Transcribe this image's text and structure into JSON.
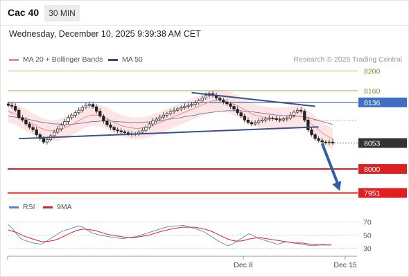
{
  "header": {
    "title": "Cac 40",
    "timeframe": "30 MIN",
    "datetime": "Wednesday, December 10, 2025 9:39:38 AM CET"
  },
  "legend": {
    "ma20_label": "MA 20 + Bollinger Bands",
    "ma50_label": "MA 50",
    "credit": "Research © 2025 Trading Central",
    "rsi_label": "RSI",
    "ma9_label": "9MA"
  },
  "colors": {
    "ma20": "#f28b82",
    "ma50": "#2c4a8a",
    "bollinger_fill": "#fde2e2",
    "green_level": "#7cb342",
    "blue_level": "#3f6fc4",
    "red_level": "#e02020",
    "current_price": "#333333",
    "rsi": "#5c7fd6",
    "rsi_ma": "#e02020",
    "trendline": "#3a4f8f",
    "arrow": "#2f5fa6"
  },
  "chart_data": [
    {
      "type": "candlestick",
      "title": "Cac 40",
      "x_ticks": [
        "Dec 8",
        "Dec 15"
      ],
      "ylim": [
        7942,
        8208
      ],
      "levels": [
        {
          "value": 8200,
          "label": "8200",
          "kind": "resistance",
          "color": "#7cb342"
        },
        {
          "value": 8160,
          "label": "8160",
          "kind": "resistance",
          "color": "#7cb342"
        },
        {
          "value": 8136,
          "label": "8136",
          "kind": "pivot",
          "color": "#3f6fc4"
        },
        {
          "value": 8053,
          "label": "8053",
          "kind": "current",
          "color": "#333333"
        },
        {
          "value": 8000,
          "label": "8000",
          "kind": "support",
          "color": "#e02020"
        },
        {
          "value": 7951,
          "label": "7951",
          "kind": "support",
          "color": "#e02020"
        }
      ],
      "closes": [
        8130,
        8128,
        8120,
        8105,
        8100,
        8092,
        8085,
        8080,
        8070,
        8062,
        8055,
        8060,
        8068,
        8075,
        8082,
        8090,
        8097,
        8105,
        8110,
        8115,
        8120,
        8126,
        8130,
        8132,
        8127,
        8118,
        8108,
        8098,
        8090,
        8085,
        8080,
        8078,
        8076,
        8074,
        8072,
        8071,
        8072,
        8075,
        8079,
        8085,
        8092,
        8098,
        8102,
        8106,
        8110,
        8113,
        8117,
        8120,
        8123,
        8125,
        8128,
        8130,
        8132,
        8135,
        8140,
        8145,
        8150,
        8154,
        8150,
        8145,
        8141,
        8137,
        8133,
        8128,
        8122,
        8115,
        8108,
        8100,
        8095,
        8092,
        8095,
        8098,
        8100,
        8102,
        8104,
        8103,
        8101,
        8100,
        8102,
        8104,
        8110,
        8116,
        8120,
        8118,
        8100,
        8080,
        8070,
        8062,
        8058,
        8055,
        8054,
        8055,
        8053
      ],
      "ma20": [
        8118,
        8115,
        8112,
        8108,
        8104,
        8100,
        8096,
        8092,
        8088,
        8084,
        8081,
        8079,
        8078,
        8078,
        8079,
        8081,
        8084,
        8087,
        8091,
        8095,
        8099,
        8103,
        8106,
        8109,
        8110,
        8110,
        8109,
        8106,
        8103,
        8099,
        8095,
        8092,
        8089,
        8087,
        8085,
        8084,
        8083,
        8083,
        8084,
        8085,
        8087,
        8089,
        8092,
        8095,
        8098,
        8101,
        8104,
        8107,
        8110,
        8113,
        8116,
        8119,
        8122,
        8125,
        8128,
        8131,
        8134,
        8137,
        8139,
        8140,
        8140,
        8139,
        8137,
        8135,
        8132,
        8129,
        8125,
        8121,
        8117,
        8113,
        8110,
        8108,
        8106,
        8105,
        8104,
        8103,
        8103,
        8103,
        8103,
        8104,
        8105,
        8107,
        8108,
        8108,
        8104,
        8098,
        8092,
        8086,
        8080,
        8074,
        8069,
        8065,
        8061
      ],
      "ma50": [
        8108,
        8107,
        8106,
        8105,
        8104,
        8102,
        8101,
        8099,
        8098,
        8096,
        8095,
        8094,
        8093,
        8092,
        8092,
        8091,
        8091,
        8091,
        8091,
        8092,
        8093,
        8094,
        8095,
        8096,
        8097,
        8097,
        8098,
        8098,
        8098,
        8098,
        8097,
        8097,
        8096,
        8096,
        8095,
        8095,
        8095,
        8095,
        8095,
        8096,
        8096,
        8097,
        8098,
        8099,
        8100,
        8101,
        8102,
        8103,
        8104,
        8105,
        8107,
        8108,
        8109,
        8110,
        8112,
        8113,
        8114,
        8115,
        8116,
        8117,
        8118,
        8118,
        8119,
        8119,
        8119,
        8119,
        8119,
        8118,
        8118,
        8117,
        8116,
        8115,
        8114,
        8113,
        8112,
        8111,
        8110,
        8110,
        8109,
        8109,
        8108,
        8108,
        8108,
        8107,
        8106,
        8105,
        8103,
        8101,
        8099,
        8097,
        8095,
        8093,
        8091
      ],
      "trendlines": [
        {
          "from": [
            3,
            8062
          ],
          "to": [
            88,
            8086
          ]
        },
        {
          "from": [
            52,
            8156
          ],
          "to": [
            87,
            8128
          ]
        }
      ],
      "forecast_arrow": {
        "from": [
          89,
          8052
        ],
        "to": [
          94,
          7955
        ]
      }
    },
    {
      "type": "line",
      "series": [
        {
          "name": "RSI",
          "values": [
            66,
            60,
            52,
            45,
            42,
            40,
            38,
            37,
            36,
            40,
            44,
            48,
            52,
            56,
            58,
            60,
            62,
            64,
            62,
            58,
            54,
            52,
            50,
            49,
            48,
            47,
            46,
            45,
            45,
            46,
            47,
            48,
            50,
            52,
            54,
            56,
            58,
            60,
            62,
            63,
            64,
            64,
            65,
            64,
            62,
            60,
            58,
            56,
            52,
            48,
            44,
            40,
            37,
            34,
            36,
            40,
            44,
            48,
            52,
            50,
            46,
            44,
            42,
            40,
            38,
            36,
            38,
            40,
            39,
            38,
            37,
            36,
            35,
            34,
            34,
            35,
            36,
            35,
            35
          ]
        },
        {
          "name": "9MA",
          "values": [
            58,
            56,
            54,
            51,
            48,
            46,
            44,
            42,
            40,
            40,
            41,
            42,
            44,
            47,
            50,
            53,
            56,
            58,
            59,
            59,
            58,
            57,
            55,
            53,
            51,
            50,
            49,
            48,
            47,
            46,
            46,
            47,
            48,
            49,
            50,
            52,
            54,
            56,
            57,
            59,
            60,
            61,
            62,
            62,
            62,
            62,
            61,
            60,
            58,
            56,
            53,
            50,
            47,
            44,
            42,
            41,
            41,
            42,
            44,
            45,
            46,
            46,
            45,
            44,
            43,
            42,
            41,
            40,
            39,
            38,
            38,
            38,
            37,
            36,
            36,
            35,
            35,
            35,
            35
          ]
        }
      ],
      "y_ticks": [
        70,
        50,
        30
      ],
      "ylim": [
        20,
        78
      ]
    }
  ]
}
